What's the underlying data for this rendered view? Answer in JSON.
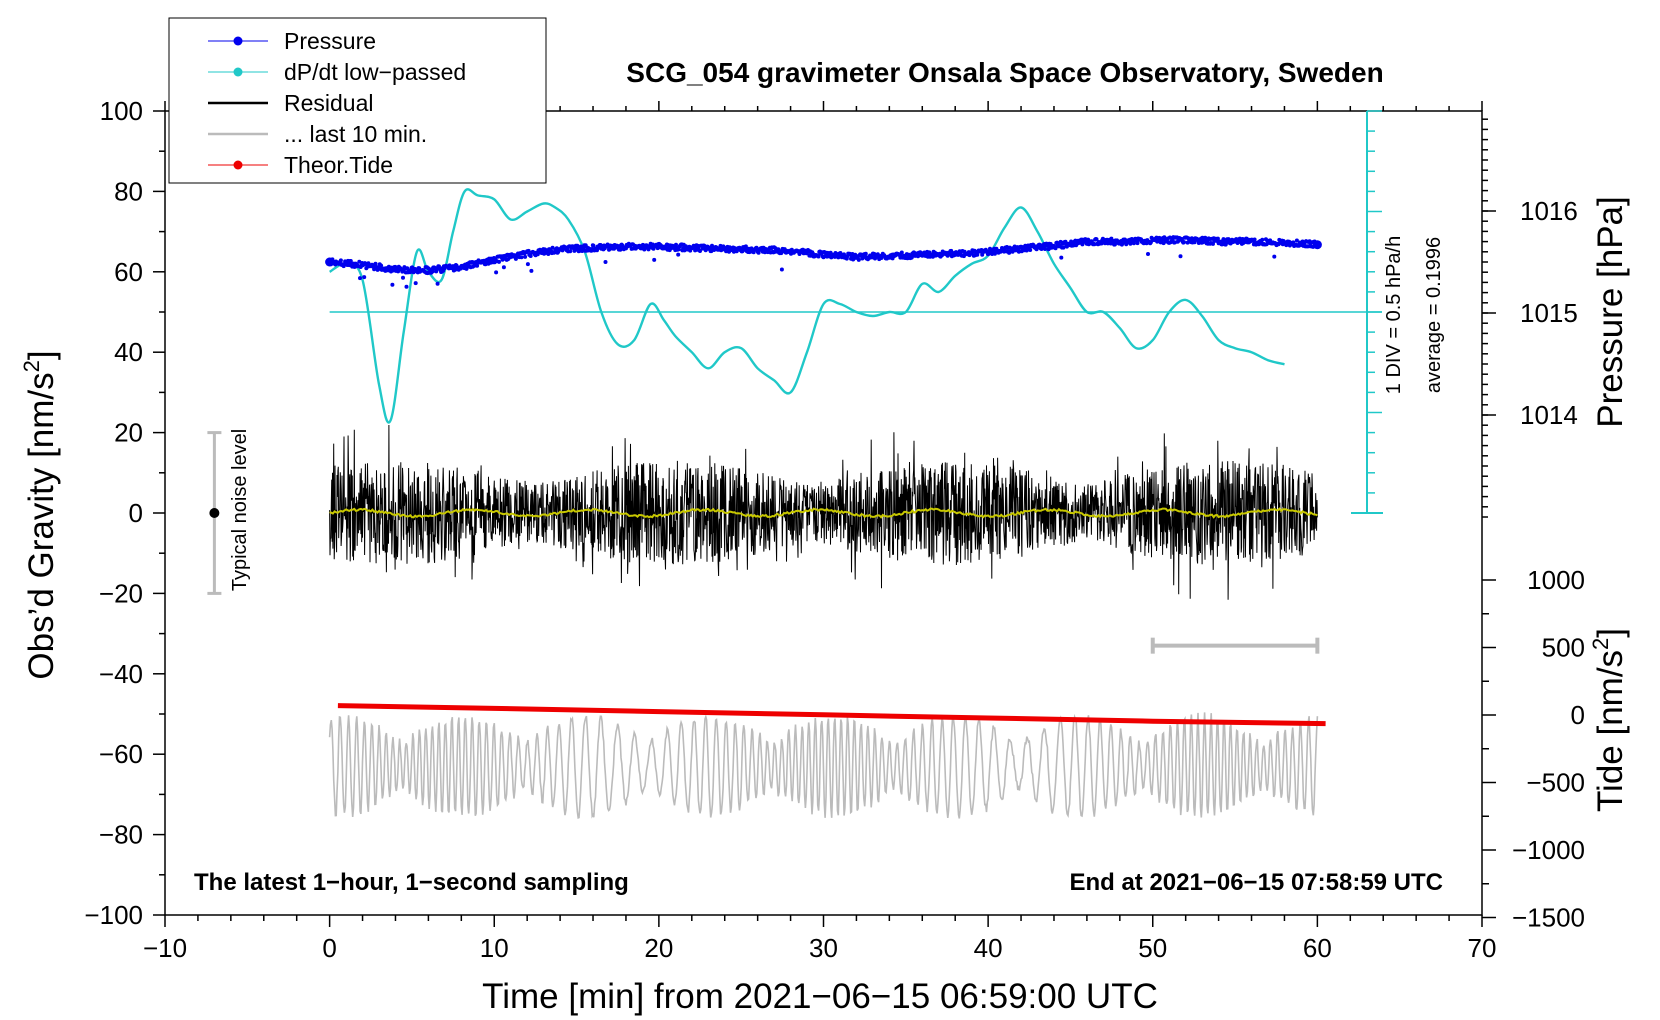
{
  "chart_data": {
    "type": "line",
    "title": "SCG_054 gravimeter Onsala Space Observatory, Sweden",
    "xlabel": "Time [min] from 2021−06−15 06:59:00 UTC",
    "ylabel_main": "Obs’d Gravity [nm/s",
    "ylabel_sup": "2",
    "ylabel_close": "]",
    "ylabel_pressure": "Pressure [hPa]",
    "ylabel_tide_main": "Tide [nm/s",
    "ylabel_tide_sup": "2",
    "ylabel_tide_close": "]",
    "xlim": [
      -10,
      70
    ],
    "ylim": [
      -100,
      100
    ],
    "x_ticks": [
      -10,
      0,
      10,
      20,
      30,
      40,
      50,
      60,
      70
    ],
    "x_tick_labels": [
      "−10",
      "0",
      "10",
      "20",
      "30",
      "40",
      "50",
      "60",
      "70"
    ],
    "y_ticks": [
      -100,
      -80,
      -60,
      -40,
      -20,
      0,
      20,
      40,
      60,
      80,
      100
    ],
    "y_tick_labels": [
      "−100",
      "−80",
      "−60",
      "−40",
      "−20",
      "0",
      "20",
      "40",
      "60",
      "80",
      "100"
    ],
    "pressure_ticks": [
      1014,
      1015,
      1016
    ],
    "pressure_tick_labels": [
      "1014",
      "1015",
      "1016"
    ],
    "pressure_range": [
      1013,
      1017
    ],
    "tide_ticks": [
      -1500,
      -1000,
      -500,
      0,
      500,
      1000
    ],
    "tide_tick_labels": [
      "−1500",
      "−1000",
      "−500",
      "0",
      "500",
      "1000"
    ],
    "tide_range": [
      -1500,
      1000
    ],
    "legend": [
      {
        "label": "Pressure",
        "color": "#0000ee",
        "marker": true
      },
      {
        "label": "dP/dt low−passed",
        "color": "#20c8c8",
        "marker": true
      },
      {
        "label": "Residual",
        "color": "#000000",
        "marker": false
      },
      {
        "label": "... last 10 min.",
        "color": "#bbbbbb",
        "marker": false
      },
      {
        "label": "Theor.Tide",
        "color": "#ee0000",
        "marker": true
      }
    ],
    "legend_position": "top-left",
    "annotations": {
      "bottom_left": "The latest 1−hour, 1−second sampling",
      "bottom_right": "End at 2021−06−15 07:58:59 UTC",
      "noise_label": "Typical noise level",
      "div_label": "1 DIV = 0.5 hPa/h",
      "avg_label": "average = 0.1996"
    },
    "noise_bar": {
      "x": -7,
      "center": 0,
      "low": -20,
      "high": 20
    },
    "last10_bar": {
      "x_start": 50,
      "x_end": 60,
      "y": -33
    },
    "series": [
      {
        "name": "Pressure",
        "unit": "hPa",
        "color": "#0000ee",
        "x": [
          0,
          2,
          4,
          6,
          8,
          10,
          12,
          14,
          16,
          18,
          20,
          22,
          24,
          26,
          28,
          30,
          32,
          34,
          36,
          38,
          40,
          42,
          44,
          46,
          48,
          50,
          52,
          54,
          56,
          58,
          60
        ],
        "y": [
          1015.5,
          1015.47,
          1015.43,
          1015.42,
          1015.45,
          1015.52,
          1015.58,
          1015.62,
          1015.64,
          1015.65,
          1015.65,
          1015.64,
          1015.63,
          1015.62,
          1015.61,
          1015.57,
          1015.55,
          1015.56,
          1015.57,
          1015.58,
          1015.6,
          1015.63,
          1015.66,
          1015.7,
          1015.7,
          1015.71,
          1015.72,
          1015.7,
          1015.7,
          1015.69,
          1015.67
        ]
      },
      {
        "name": "dP/dt low-passed",
        "unit": "hPa/h",
        "color": "#20c8c8",
        "baseline": 50,
        "div_units": 5,
        "x": [
          0,
          1,
          2,
          3,
          3.7,
          4.5,
          5.3,
          6,
          6.8,
          7.5,
          8.2,
          9,
          10,
          11,
          12,
          13,
          13.7,
          14.5,
          15.5,
          16.5,
          17.5,
          18.5,
          19.5,
          20.3,
          21,
          22,
          23,
          24,
          25,
          26,
          27,
          28,
          29,
          30,
          31,
          32,
          33,
          34,
          35,
          36,
          37,
          38,
          39,
          40,
          41,
          42,
          43,
          44,
          45,
          46,
          47,
          48,
          49,
          50,
          51,
          52,
          53,
          54,
          55,
          56,
          57,
          58
        ],
        "y": [
          60,
          62,
          58,
          32,
          23,
          45,
          65,
          60,
          58,
          70,
          80,
          79,
          78,
          73,
          75,
          77,
          76,
          73,
          65,
          50,
          42,
          43,
          52,
          48,
          44,
          40,
          36,
          40,
          41,
          36,
          33,
          30,
          40,
          52,
          52,
          50,
          49,
          50,
          50,
          57,
          55,
          59,
          62,
          64,
          71,
          76,
          70,
          62,
          56,
          50,
          50,
          46,
          41,
          43,
          50,
          53,
          49,
          43,
          41,
          40,
          38,
          37
        ]
      },
      {
        "name": "Residual",
        "unit": "nm/s2",
        "color": "#000000",
        "x_range": [
          0,
          60
        ],
        "amplitude": 10,
        "peak_max": 22,
        "peak_min": -25
      },
      {
        "name": "Residual smoothed",
        "unit": "nm/s2",
        "color": "#c8c800",
        "x_range": [
          0,
          60
        ],
        "approx_value": 0
      },
      {
        "name": "last 10 min.",
        "unit": "nm/s2",
        "color": "#bbbbbb",
        "x_range": [
          0,
          60
        ],
        "center": -63,
        "amplitude": 10,
        "peak_max": -40,
        "peak_min": -81
      },
      {
        "name": "Theor.Tide",
        "unit": "nm/s2",
        "color": "#ee0000",
        "x": [
          0.5,
          10,
          20,
          30,
          40,
          50,
          60.5
        ],
        "y": [
          -47.9,
          -48.6,
          -49.4,
          -50.2,
          -51.0,
          -51.8,
          -52.4
        ]
      }
    ]
  }
}
